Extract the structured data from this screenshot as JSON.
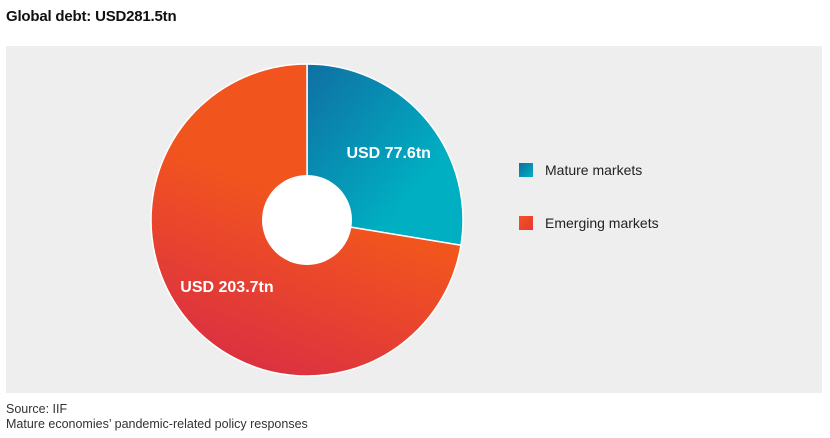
{
  "title": "Global debt: USD281.5tn",
  "chart_data": {
    "type": "pie",
    "title": "Global debt: USD281.5tn",
    "donut": true,
    "categories": [
      "Mature markets",
      "Emerging markets"
    ],
    "values": [
      77.6,
      203.7
    ],
    "units": "USD tn",
    "data_labels": [
      "USD 77.6tn",
      "USD 203.7tn"
    ],
    "colors": [
      [
        "#0f6fa3",
        "#00afc2"
      ],
      [
        "#f2541e",
        "#da2f43"
      ]
    ],
    "legend_position": "right"
  },
  "legend": [
    {
      "label": "Mature markets",
      "color": "#0f8fb4"
    },
    {
      "label": "Emerging markets",
      "color": "#f04b24"
    }
  ],
  "footer": {
    "source": "Source: IIF",
    "caption": "Mature economies’ pandemic-related policy responses"
  }
}
